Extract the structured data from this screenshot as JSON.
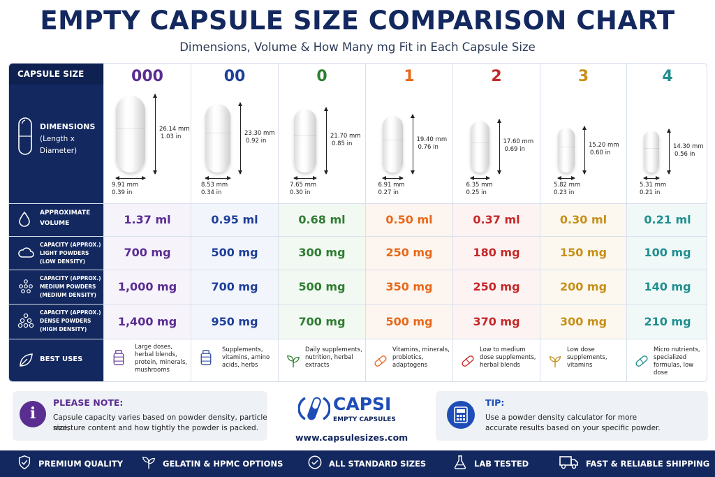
{
  "header": {
    "title": "EMPTY CAPSULE SIZE COMPARISON CHART",
    "subtitle": "Dimensions, Volume & How Many mg Fit in Each Capsule Size"
  },
  "row_labels": {
    "capsule_size": "CAPSULE SIZE",
    "dimensions_1": "DIMENSIONS",
    "dimensions_2": "(Length x",
    "dimensions_3": "Diameter)",
    "volume_1": "APPROXIMATE",
    "volume_2": "VOLUME",
    "light_1": "CAPACITY (APPROX.)",
    "light_2": "LIGHT POWDERS",
    "light_3": "(LOW DENSITY)",
    "medium_1": "CAPACITY (APPROX.)",
    "medium_2": "MEDIUM POWDERS",
    "medium_3": "(MEDIUM DENSITY)",
    "dense_1": "CAPACITY (APPROX.)",
    "dense_2": "DENSE POWDERS",
    "dense_3": "(HIGH DENSITY)",
    "uses": "BEST USES"
  },
  "sizes": [
    {
      "name": "000",
      "color": "#5a2d91",
      "bg": "#f6f3fb",
      "length_mm": "26.14 mm",
      "length_in": "1.03 in",
      "diameter_mm": "9.91 mm",
      "diameter_in": "0.39 in",
      "volume": "1.37 ml",
      "light": "700 mg",
      "medium": "1,000 mg",
      "dense": "1,400 mg",
      "use_icon": "bottle-icon",
      "uses": [
        "Large doses,",
        "herbal blends,",
        "protein, minerals,",
        "mushrooms"
      ]
    },
    {
      "name": "00",
      "color": "#1e3f9a",
      "bg": "#f2f5fc",
      "length_mm": "23.30 mm",
      "length_in": "0.92 in",
      "diameter_mm": "8.53 mm",
      "diameter_in": "0.34 in",
      "volume": "0.95 ml",
      "light": "500 mg",
      "medium": "700 mg",
      "dense": "950 mg",
      "use_icon": "bottle-icon",
      "uses": [
        "Supplements,",
        "vitamins, amino",
        "acids, herbs"
      ]
    },
    {
      "name": "0",
      "color": "#2e7d32",
      "bg": "#f2f9f2",
      "length_mm": "21.70 mm",
      "length_in": "0.85 in",
      "diameter_mm": "7.65 mm",
      "diameter_in": "0.30 in",
      "volume": "0.68 ml",
      "light": "300 mg",
      "medium": "500 mg",
      "dense": "700 mg",
      "use_icon": "leaf-icon",
      "uses": [
        "Daily supplements,",
        "nutrition, herbal",
        "extracts"
      ]
    },
    {
      "name": "1",
      "color": "#e8681a",
      "bg": "#fdf5ef",
      "length_mm": "19.40 mm",
      "length_in": "0.76 in",
      "diameter_mm": "6.91 mm",
      "diameter_in": "0.27 in",
      "volume": "0.50 ml",
      "light": "250 mg",
      "medium": "350 mg",
      "dense": "500 mg",
      "use_icon": "capsule-icon",
      "uses": [
        "Vitamins, minerals,",
        "probiotics,",
        "adaptogens"
      ]
    },
    {
      "name": "2",
      "color": "#c62828",
      "bg": "#fdf3f3",
      "length_mm": "17.60 mm",
      "length_in": "0.69 in",
      "diameter_mm": "6.35 mm",
      "diameter_in": "0.25 in",
      "volume": "0.37 ml",
      "light": "180 mg",
      "medium": "250 mg",
      "dense": "370 mg",
      "use_icon": "capsule-icon",
      "uses": [
        "Low to medium",
        "dose supplements,",
        "herbal blends"
      ]
    },
    {
      "name": "3",
      "color": "#c8901a",
      "bg": "#fcf8ef",
      "length_mm": "15.20 mm",
      "length_in": "0.60 in",
      "diameter_mm": "5.82 mm",
      "diameter_in": "0.23 in",
      "volume": "0.30 ml",
      "light": "150 mg",
      "medium": "200 mg",
      "dense": "300 mg",
      "use_icon": "sprout-icon",
      "uses": [
        "Low dose",
        "supplements,",
        "vitamins"
      ]
    },
    {
      "name": "4",
      "color": "#1f8f8f",
      "bg": "#f1f8f8",
      "length_mm": "14.30 mm",
      "length_in": "0.56 in",
      "diameter_mm": "5.31 mm",
      "diameter_in": "0.21 in",
      "volume": "0.21 ml",
      "light": "100 mg",
      "medium": "140 mg",
      "dense": "210 mg",
      "use_icon": "capsule-icon",
      "uses": [
        "Micro nutrients,",
        "specialized",
        "formulas, low dose"
      ]
    }
  ],
  "note": {
    "title": "PLEASE NOTE:",
    "line1": "Capsule capacity varies based on powder density, particle size,",
    "line2": "moisture content and how tightly the powder is packed."
  },
  "brand": {
    "name": "CAPSI",
    "tagline": "EMPTY CAPSULES",
    "url": "www.capsulesizes.com"
  },
  "tip": {
    "title": "TIP:",
    "line1": "Use a powder density calculator for more",
    "line2": "accurate results based on your specific powder."
  },
  "footer": [
    {
      "icon": "shield-check-icon",
      "label": "PREMIUM QUALITY"
    },
    {
      "icon": "leaf-icon",
      "label": "GELATIN & HPMC OPTIONS"
    },
    {
      "icon": "check-circle-icon",
      "label": "ALL STANDARD SIZES"
    },
    {
      "icon": "flask-icon",
      "label": "LAB TESTED"
    },
    {
      "icon": "truck-icon",
      "label": "FAST & RELIABLE SHIPPING"
    }
  ]
}
